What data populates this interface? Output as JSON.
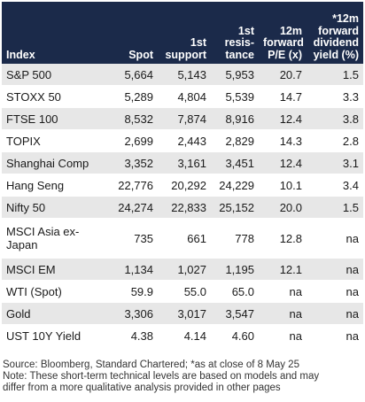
{
  "table": {
    "headers": [
      {
        "label": "Index",
        "align": "l"
      },
      {
        "label": "Spot",
        "align": "r"
      },
      {
        "label": "1st\nsupport",
        "align": "r"
      },
      {
        "label": "1st\nresis-\ntance",
        "align": "r"
      },
      {
        "label": "12m\nforward\nP/E (x)",
        "align": "r"
      },
      {
        "label": "*12m\nforward\ndividend\nyield (%)",
        "align": "r"
      }
    ],
    "rows": [
      {
        "cells": [
          "S&P 500",
          "5,664",
          "5,143",
          "5,953",
          "20.7",
          "1.5"
        ]
      },
      {
        "cells": [
          "STOXX 50",
          "5,289",
          "4,804",
          "5,539",
          "14.7",
          "3.3"
        ]
      },
      {
        "cells": [
          "FTSE 100",
          "8,532",
          "7,874",
          "8,916",
          "12.4",
          "3.8"
        ]
      },
      {
        "cells": [
          "TOPIX",
          "2,699",
          "2,443",
          "2,829",
          "14.3",
          "2.8"
        ]
      },
      {
        "cells": [
          "Shanghai Comp",
          "3,352",
          "3,161",
          "3,451",
          "12.4",
          "3.1"
        ]
      },
      {
        "cells": [
          "Hang Seng",
          "22,776",
          "20,292",
          "24,229",
          "10.1",
          "3.4"
        ]
      },
      {
        "cells": [
          "Nifty 50",
          "24,274",
          "22,833",
          "25,152",
          "20.0",
          "1.5"
        ]
      },
      {
        "cells": [
          "MSCI Asia ex-Japan",
          "735",
          "661",
          "778",
          "12.8",
          "na"
        ],
        "tall": true
      },
      {
        "cells": [
          "MSCI EM",
          "1,134",
          "1,027",
          "1,195",
          "12.1",
          "na"
        ]
      },
      {
        "cells": [
          "WTI (Spot)",
          "59.9",
          "55.0",
          "65.0",
          "na",
          "na"
        ]
      },
      {
        "cells": [
          "Gold",
          "3,306",
          "3,017",
          "3,547",
          "na",
          "na"
        ]
      },
      {
        "cells": [
          "UST 10Y Yield",
          "4.38",
          "4.14",
          "4.60",
          "na",
          "na"
        ]
      }
    ]
  },
  "footnote": {
    "source": "Source: Bloomberg, Standard Chartered; *as at close of 8 May 25",
    "note_line1": "Note: These short-term technical levels are based on models and may",
    "note_line2": "differ from a more qualitative analysis provided in other pages"
  },
  "colors": {
    "header_bg": "#1b2a4a",
    "row_shade": "#e7e7e7"
  }
}
